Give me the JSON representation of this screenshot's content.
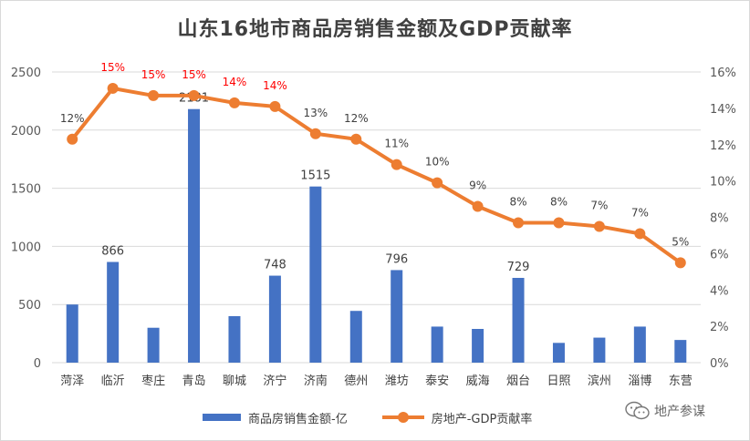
{
  "colors": {
    "bar": "#4472c4",
    "line": "#ed7d31",
    "highlight": "#ff0000",
    "grid": "#d9d9d9"
  },
  "watermark": {
    "text": "地产参谋",
    "icon": "wechat-icon"
  },
  "chart_data": {
    "type": "bar+line",
    "title": "山东16地市商品房销售金额及GDP贡献率",
    "categories": [
      "菏泽",
      "临沂",
      "枣庄",
      "青岛",
      "聊城",
      "济宁",
      "济南",
      "德州",
      "潍坊",
      "泰安",
      "威海",
      "烟台",
      "日照",
      "滨州",
      "淄博",
      "东营"
    ],
    "series": [
      {
        "name": "商品房销售金额-亿",
        "type": "bar",
        "axis": "left",
        "values": [
          500,
          866,
          300,
          2181,
          400,
          748,
          1515,
          445,
          796,
          310,
          290,
          729,
          170,
          215,
          310,
          195
        ],
        "labels": [
          "",
          "866",
          "",
          "2181",
          "",
          "748",
          "1515",
          "",
          "796",
          "",
          "",
          "729",
          "",
          "",
          "",
          ""
        ]
      },
      {
        "name": "房地产-GDP贡献率",
        "type": "line",
        "axis": "right",
        "values": [
          12.3,
          15.1,
          14.7,
          14.7,
          14.3,
          14.1,
          12.6,
          12.3,
          10.9,
          9.9,
          8.6,
          7.7,
          7.7,
          7.5,
          7.1,
          5.5
        ],
        "labels": [
          "12%",
          "15%",
          "15%",
          "15%",
          "14%",
          "14%",
          "13%",
          "12%",
          "11%",
          "10%",
          "9%",
          "8%",
          "8%",
          "7%",
          "7%",
          "5%"
        ],
        "highlighted": [
          false,
          true,
          true,
          true,
          true,
          true,
          false,
          false,
          false,
          false,
          false,
          false,
          false,
          false,
          false,
          false
        ]
      }
    ],
    "y_left": {
      "min": 0,
      "max": 2500,
      "ticks": [
        "0",
        "500",
        "1000",
        "1500",
        "2000",
        "2500"
      ]
    },
    "y_right": {
      "min": 0,
      "max": 16,
      "ticks": [
        "0%",
        "2%",
        "4%",
        "6%",
        "8%",
        "10%",
        "12%",
        "14%",
        "16%"
      ]
    },
    "grid": true,
    "legend": {
      "position": "bottom",
      "items": [
        "商品房销售金额-亿",
        "房地产-GDP贡献率"
      ]
    }
  }
}
